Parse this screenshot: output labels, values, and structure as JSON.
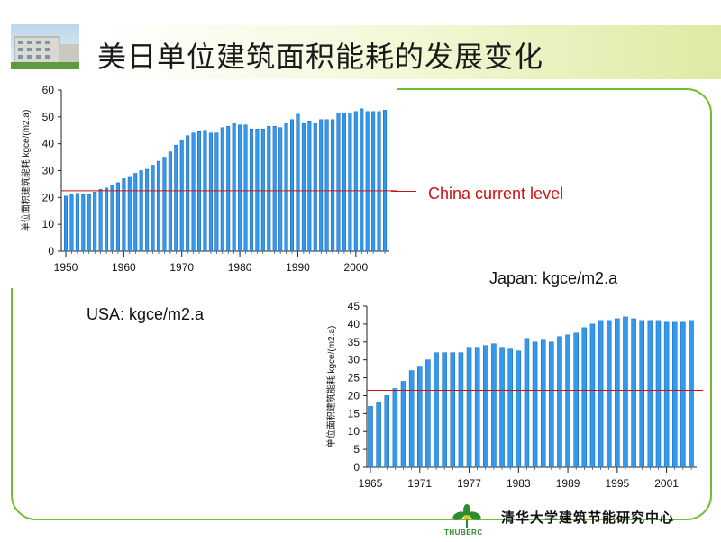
{
  "slide": {
    "title": "美日单位建筑面积能耗的发展变化",
    "china_label": "China  current level",
    "usa_label": "USA:  kgce/m2.a",
    "japan_label": "Japan:  kgce/m2.a",
    "footer_text": "清华大学建筑节能研究中心",
    "footer_logo_text": "THUBERC"
  },
  "colors": {
    "bar": "#3399ee",
    "bar_edge": "#1560b0",
    "reference_line": "#cc1111",
    "frame": "#6cbf2f"
  },
  "chart_data": [
    {
      "type": "bar",
      "ylabel": "单位面积建筑能耗 kgce/(m2.a)",
      "ylim": [
        0,
        60
      ],
      "yticks": [
        0,
        10,
        20,
        30,
        40,
        50,
        60
      ],
      "xticks": [
        "1950",
        "1960",
        "1970",
        "1980",
        "1990",
        "2000"
      ],
      "x": [
        1950,
        1951,
        1952,
        1953,
        1954,
        1955,
        1956,
        1957,
        1958,
        1959,
        1960,
        1961,
        1962,
        1963,
        1964,
        1965,
        1966,
        1967,
        1968,
        1969,
        1970,
        1971,
        1972,
        1973,
        1974,
        1975,
        1976,
        1977,
        1978,
        1979,
        1980,
        1981,
        1982,
        1983,
        1984,
        1985,
        1986,
        1987,
        1988,
        1989,
        1990,
        1991,
        1992,
        1993,
        1994,
        1995,
        1996,
        1997,
        1998,
        1999,
        2000,
        2001,
        2002,
        2003,
        2004,
        2005
      ],
      "values": [
        20.5,
        21,
        21.5,
        21,
        21,
        22,
        23,
        23.5,
        24.5,
        25.5,
        27,
        27.5,
        29,
        30,
        30.5,
        32,
        33.5,
        35,
        37,
        39.5,
        41.5,
        43,
        44,
        44.5,
        45,
        44,
        44,
        46,
        46.5,
        47.5,
        47,
        47,
        45.5,
        45.5,
        45.5,
        46.5,
        46.5,
        46,
        47.5,
        49,
        51,
        47.5,
        48.5,
        47.5,
        49,
        49,
        49,
        51.5,
        51.5,
        51.5,
        52,
        53,
        52,
        52,
        52,
        52.5
      ],
      "reference_line": 22.5
    },
    {
      "type": "bar",
      "ylabel": "单位面积建筑能耗 kgce/(m2.a)",
      "ylim": [
        0,
        45
      ],
      "yticks": [
        0,
        5,
        10,
        15,
        20,
        25,
        30,
        35,
        40,
        45
      ],
      "xticks": [
        "1965",
        "1971",
        "1977",
        "1983",
        "1989",
        "1995",
        "2001"
      ],
      "x": [
        1965,
        1966,
        1967,
        1968,
        1969,
        1970,
        1971,
        1972,
        1973,
        1974,
        1975,
        1976,
        1977,
        1978,
        1979,
        1980,
        1981,
        1982,
        1983,
        1984,
        1985,
        1986,
        1987,
        1988,
        1989,
        1990,
        1991,
        1992,
        1993,
        1994,
        1995,
        1996,
        1997,
        1998,
        1999,
        2000,
        2001,
        2002,
        2003,
        2004
      ],
      "values": [
        17,
        18,
        20,
        22,
        24,
        27,
        28,
        30,
        32,
        32,
        32,
        32,
        33.5,
        33.5,
        34,
        34.5,
        33.5,
        33,
        32.5,
        36,
        35,
        35.5,
        35,
        36.5,
        37,
        37.5,
        39,
        40,
        41,
        41,
        41.5,
        42,
        41.5,
        41,
        41,
        41,
        40.5,
        40.5,
        40.5,
        41
      ],
      "reference_line": 21.5
    }
  ]
}
